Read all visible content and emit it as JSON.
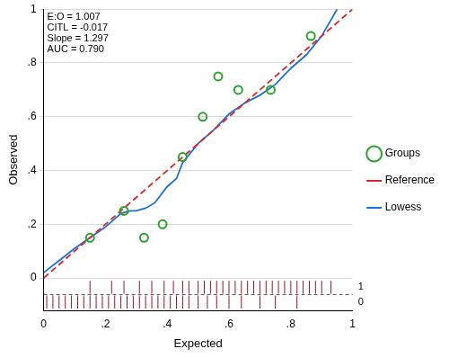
{
  "chart_data": {
    "type": "scatter",
    "x_label": "Expected",
    "y_label": "Observed",
    "annotations": [
      "E:O = 1.007",
      "CITL = -0.017",
      "Slope = 1.297",
      "AUC = 0.790"
    ],
    "xlim": [
      0,
      1
    ],
    "ylim": [
      -0.12,
      1
    ],
    "xticks": [
      0,
      {
        "value": 0.2,
        "label": ".2"
      },
      {
        "value": 0.4,
        "label": ".4"
      },
      {
        "value": 0.6,
        "label": ".6"
      },
      {
        "value": 0.8,
        "label": ".8"
      },
      1
    ],
    "yticks": [
      0,
      {
        "value": 0.2,
        "label": ".2"
      },
      {
        "value": 0.4,
        "label": ".4"
      },
      {
        "value": 0.6,
        "label": ".6"
      },
      {
        "value": 0.8,
        "label": ".8"
      },
      1
    ],
    "grid": "y",
    "legend": "right",
    "series": [
      {
        "name": "Reference",
        "type": "line",
        "line_style": "dashed",
        "color": "#d62728",
        "x": [
          0,
          1
        ],
        "values": [
          0,
          1
        ]
      },
      {
        "name": "Groups",
        "type": "scatter",
        "marker": "circle",
        "color": "#2ca02c",
        "x": [
          0.15,
          0.26,
          0.325,
          0.385,
          0.45,
          0.515,
          0.565,
          0.63,
          0.735,
          0.865
        ],
        "values": [
          0.15,
          0.25,
          0.15,
          0.2,
          0.45,
          0.6,
          0.75,
          0.7,
          0.7,
          0.9
        ]
      },
      {
        "name": "Lowess",
        "type": "line",
        "line_style": "solid",
        "color": "#1f6fd0",
        "x": [
          0,
          0.05,
          0.1,
          0.15,
          0.2,
          0.25,
          0.28,
          0.3,
          0.33,
          0.36,
          0.4,
          0.43,
          0.45,
          0.5,
          0.55,
          0.6,
          0.65,
          0.7,
          0.75,
          0.8,
          0.85,
          0.9,
          0.93,
          0.95
        ],
        "values": [
          0.02,
          0.065,
          0.11,
          0.15,
          0.19,
          0.24,
          0.25,
          0.25,
          0.26,
          0.28,
          0.34,
          0.37,
          0.43,
          0.5,
          0.55,
          0.61,
          0.65,
          0.68,
          0.72,
          0.78,
          0.83,
          0.9,
          0.96,
          1.0
        ]
      }
    ],
    "rug": {
      "color": "#8b1a2a",
      "series": [
        {
          "name": "1",
          "values": [
            0.15,
            0.22,
            0.26,
            0.31,
            0.35,
            0.39,
            0.42,
            0.45,
            0.47,
            0.5,
            0.52,
            0.54,
            0.56,
            0.58,
            0.6,
            0.62,
            0.64,
            0.66,
            0.68,
            0.7,
            0.72,
            0.74,
            0.76,
            0.78,
            0.8,
            0.82,
            0.84,
            0.86,
            0.88,
            0.9,
            0.93
          ]
        },
        {
          "name": "0",
          "values": [
            0.01,
            0.03,
            0.05,
            0.07,
            0.09,
            0.11,
            0.13,
            0.15,
            0.17,
            0.19,
            0.21,
            0.23,
            0.25,
            0.27,
            0.29,
            0.31,
            0.33,
            0.35,
            0.37,
            0.39,
            0.41,
            0.43,
            0.45,
            0.47,
            0.5,
            0.53,
            0.56,
            0.6,
            0.64,
            0.7,
            0.75,
            0.82
          ]
        }
      ]
    }
  }
}
